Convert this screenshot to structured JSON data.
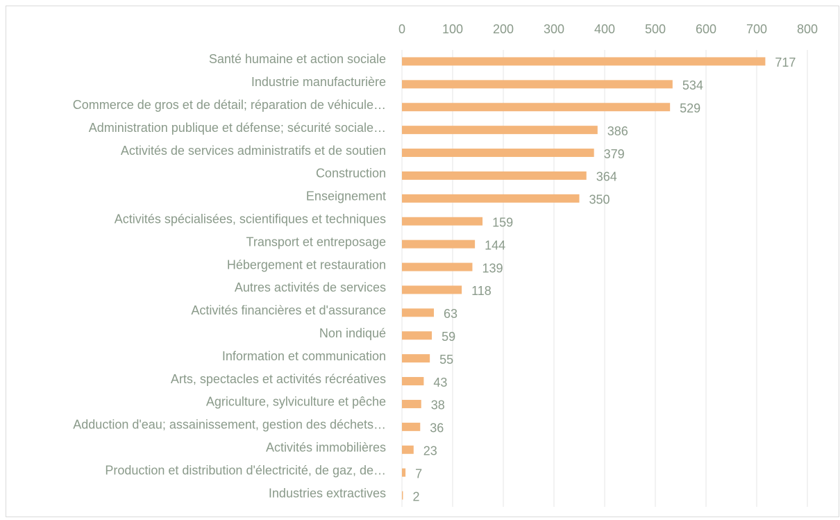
{
  "chart_data": {
    "type": "bar",
    "orientation": "horizontal",
    "categories": [
      "Santé humaine et action sociale",
      "Industrie manufacturière",
      "Commerce de gros et de détail; réparation de véhicule…",
      "Administration publique et défense; sécurité sociale…",
      "Activités de services administratifs et de soutien",
      "Construction",
      "Enseignement",
      "Activités spécialisées, scientifiques et techniques",
      "Transport et entreposage",
      "Hébergement et restauration",
      "Autres activités de services",
      "Activités financières et d'assurance",
      "Non indiqué",
      "Information et communication",
      "Arts, spectacles et activités récréatives",
      "Agriculture, sylviculture et pêche",
      "Adduction d'eau; assainissement, gestion des déchets…",
      "Activités immobilières",
      "Production et distribution d'électricité, de gaz, de…",
      "Industries extractives"
    ],
    "values": [
      717,
      534,
      529,
      386,
      379,
      364,
      350,
      159,
      144,
      139,
      118,
      63,
      59,
      55,
      43,
      38,
      36,
      23,
      7,
      2
    ],
    "color": "#f4b57a",
    "xlim": [
      0,
      800
    ],
    "xticks": [
      0,
      100,
      200,
      300,
      400,
      500,
      600,
      700,
      800
    ],
    "grid": true
  }
}
